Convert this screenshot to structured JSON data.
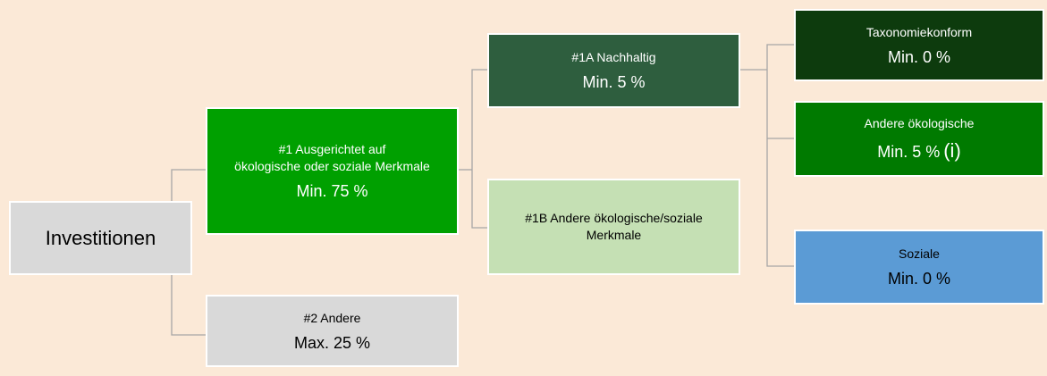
{
  "nodes": [
    {
      "lines": [
        "Investitionen"
      ]
    },
    {
      "lines": [
        "#1 Ausgerichtet auf",
        "ökologische oder soziale Merkmale"
      ],
      "value": "Min. 75 %"
    },
    {
      "lines": [
        "#2 Andere"
      ],
      "value": "Max. 25 %"
    },
    {
      "lines": [
        "#1A Nachhaltig"
      ],
      "value": "Min. 5 %"
    },
    {
      "lines": [
        "#1B Andere ökologische/soziale",
        "Merkmale"
      ]
    },
    {
      "lines": [
        "Taxonomiekonform"
      ],
      "value": "Min. 0 %"
    },
    {
      "lines": [
        "Andere ökologische"
      ],
      "value": "Min. 5 %",
      "note": "(i)"
    },
    {
      "lines": [
        "Soziale"
      ],
      "value": "Min. 0 %"
    }
  ]
}
